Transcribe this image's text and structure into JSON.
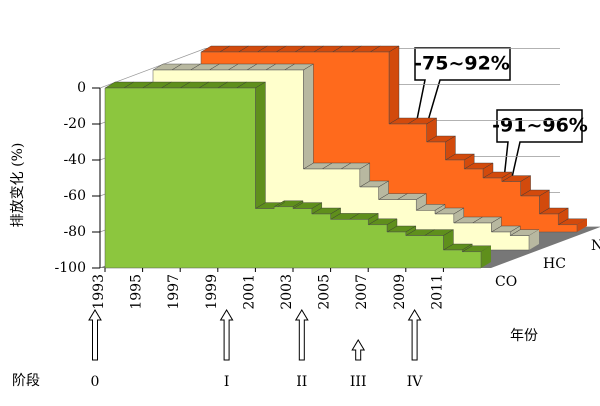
{
  "chart_data": {
    "type": "area3d",
    "y_label": "排放变化 (%)",
    "x_label": "年份",
    "stage_label": "阶段",
    "x": [
      1993,
      1994,
      1995,
      1996,
      1997,
      1998,
      1999,
      2000,
      2001,
      2002,
      2003,
      2004,
      2005,
      2006,
      2007,
      2008,
      2009,
      2010,
      2011,
      2012
    ],
    "series": [
      {
        "name": "CO",
        "color": "#8cc63e",
        "top_color": "#5f8f1c",
        "values": [
          0,
          0,
          0,
          0,
          0,
          0,
          0,
          0,
          -67,
          -66,
          -67,
          -70,
          -73,
          -73,
          -76,
          -80,
          -82,
          -82,
          -90,
          -91
        ]
      },
      {
        "name": "HC",
        "color": "#ffffcc",
        "top_color": "#b8b8a0",
        "values": [
          0,
          0,
          0,
          0,
          0,
          0,
          0,
          0,
          -55,
          -55,
          -55,
          -65,
          -72,
          -72,
          -78,
          -80,
          -85,
          -85,
          -90,
          -92
        ]
      },
      {
        "name": "NOx",
        "color": "#ff6a1c",
        "top_color": "#d24a0c",
        "values": [
          0,
          0,
          0,
          0,
          0,
          0,
          0,
          0,
          0,
          0,
          -40,
          -40,
          -50,
          -60,
          -65,
          -70,
          -72,
          -80,
          -90,
          -96
        ]
      }
    ],
    "ylim": [
      -100,
      0
    ],
    "yticks": [
      0,
      -20,
      -40,
      -60,
      -80,
      -100
    ],
    "xticks": [
      1993,
      1995,
      1997,
      1999,
      2001,
      2003,
      2005,
      2007,
      2009,
      2011
    ],
    "stages": [
      {
        "label": "0",
        "x": 1993
      },
      {
        "label": "I",
        "x": 2000
      },
      {
        "label": "II",
        "x": 2004
      },
      {
        "label": "III",
        "x": 2007
      },
      {
        "label": "IV",
        "x": 2010
      }
    ],
    "annotations": [
      "-75~92%",
      "-91~96%"
    ],
    "grid": true
  }
}
